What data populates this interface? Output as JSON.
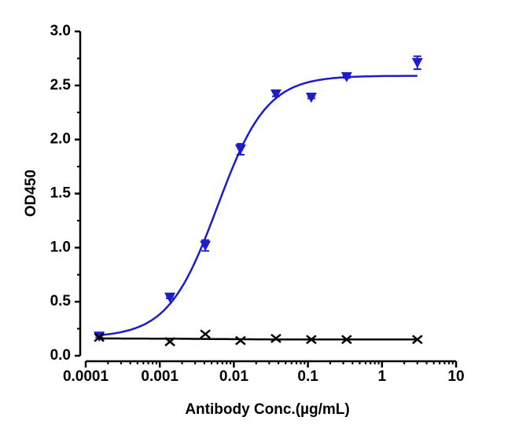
{
  "chart_data": {
    "type": "scatter",
    "xlabel": "Antibody Conc.(µg/mL)",
    "ylabel": "OD450",
    "xscale": "log",
    "xlim": [
      0.0001,
      10
    ],
    "xticks": [
      0.0001,
      0.001,
      0.01,
      0.1,
      1,
      10
    ],
    "ylim": [
      0,
      3
    ],
    "yticks": [
      {
        "value": 0,
        "label": "0.0"
      },
      {
        "value": 0.5,
        "label": "0.5"
      },
      {
        "value": 1,
        "label": "1.0"
      },
      {
        "value": 1.5,
        "label": "1.5"
      },
      {
        "value": 2,
        "label": "2.0"
      },
      {
        "value": 2.5,
        "label": "2.5"
      },
      {
        "value": 3,
        "label": "3.0"
      }
    ],
    "x": [
      0.000152,
      0.00137,
      0.00412,
      0.0123,
      0.037,
      0.111,
      0.333,
      3
    ],
    "series": [
      {
        "color": "#1c1cc8",
        "marker": "triangle-down",
        "values": [
          0.18,
          0.54,
          1.02,
          1.91,
          2.42,
          2.39,
          2.58,
          2.71
        ],
        "errors": [
          0.01,
          0.01,
          0.05,
          0.05,
          0.02,
          0.01,
          0.01,
          0.06
        ],
        "fit": {
          "bottom": 0.17,
          "top": 2.59,
          "ec50": 0.006,
          "hill": 1.3
        }
      },
      {
        "color": "#000000",
        "marker": "x",
        "values": [
          0.17,
          0.13,
          0.2,
          0.14,
          0.16,
          0.15,
          0.15,
          0.15
        ],
        "fit": {
          "bottom": 0.16,
          "top": 0.15,
          "ec50": 0.005,
          "hill": 1
        }
      }
    ]
  }
}
